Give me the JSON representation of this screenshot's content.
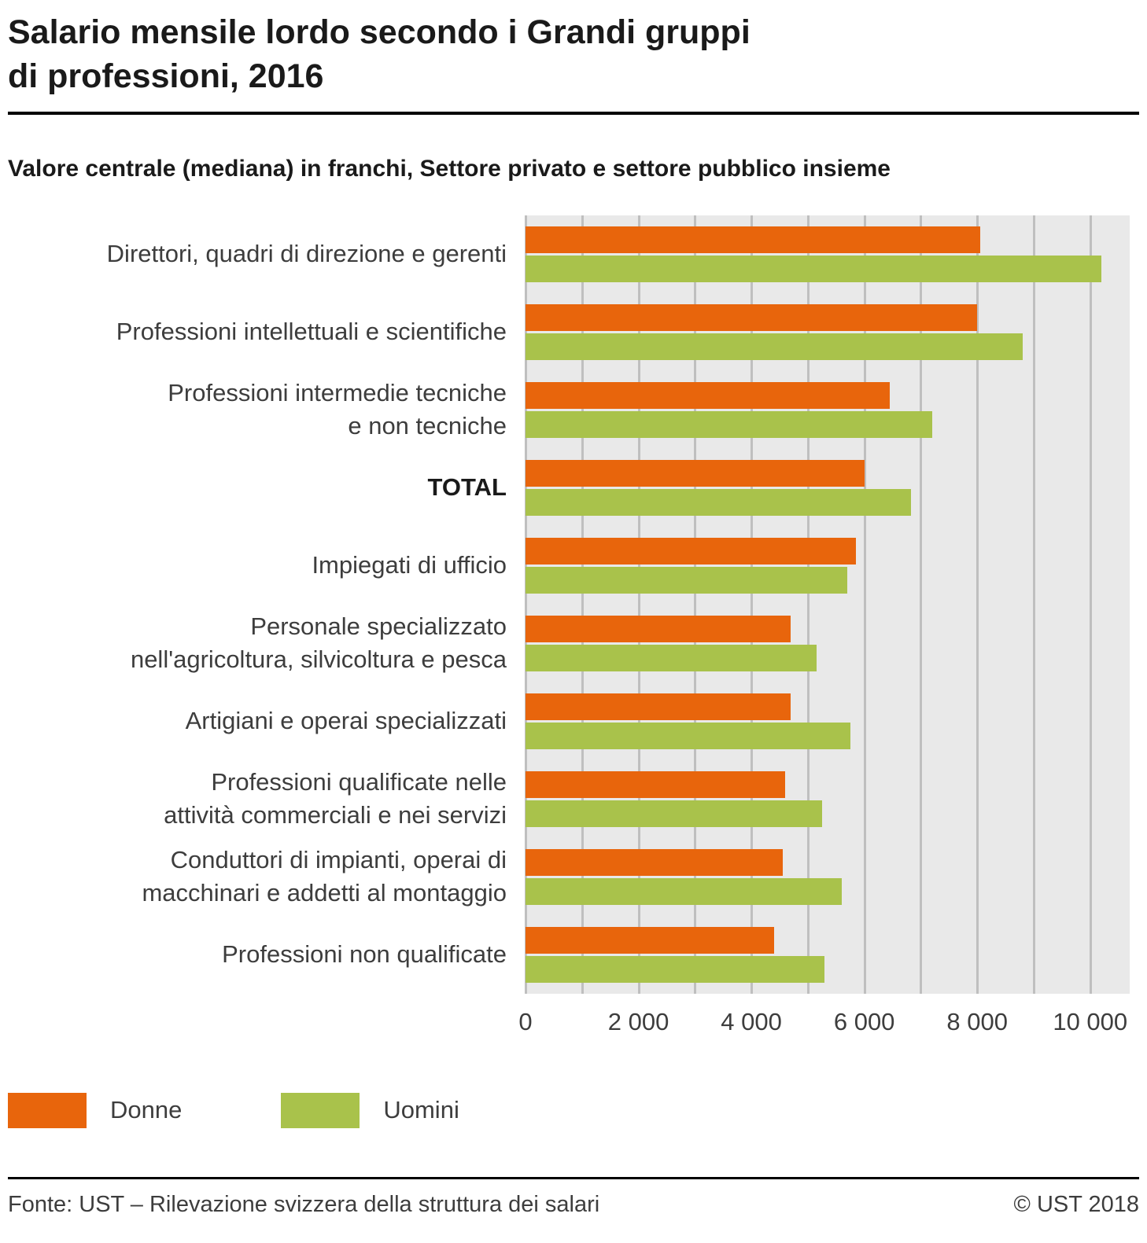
{
  "title": "Salario mensile lordo secondo i Grandi gruppi\ndi professioni, 2016",
  "subtitle": "Valore centrale (mediana) in franchi, Settore privato e settore pubblico insieme",
  "legend": {
    "donne_label": "Donne",
    "uomini_label": "Uomini"
  },
  "footer": {
    "source": "Fonte: UST – Rilevazione svizzera della struttura dei salari",
    "copyright": "© UST 2018"
  },
  "colors": {
    "donne": "#e8650c",
    "uomini": "#a9c24b",
    "plot_background": "#e9e9e9",
    "gridline": "#bfbfbf"
  },
  "chart_data": {
    "type": "bar",
    "orientation": "horizontal",
    "title": "Salario mensile lordo secondo i Grandi gruppi di professioni, 2016",
    "subtitle": "Valore centrale (mediana) in franchi, Settore privato e settore pubblico insieme",
    "unit": "franchi",
    "categories": [
      "Direttori, quadri di direzione e gerenti",
      "Professioni intellettuali e scientifiche",
      "Professioni intermedie tecniche\ne non tecniche",
      "TOTAL",
      "Impiegati di ufficio",
      "Personale specializzato\nnell'agricoltura, silvicoltura e pesca",
      "Artigiani e operai specializzati",
      "Professioni qualificate nelle\nattività commerciali e nei servizi",
      "Conduttori di impianti, operai di\nmacchinari e addetti al montaggio",
      "Professioni non qualificate"
    ],
    "total_index": 3,
    "series": [
      {
        "name": "Donne",
        "color": "#e8650c",
        "values": [
          8050,
          8000,
          6450,
          6000,
          5850,
          4700,
          4700,
          4600,
          4550,
          4400
        ]
      },
      {
        "name": "Uomini",
        "color": "#a9c24b",
        "values": [
          10200,
          8800,
          7200,
          6830,
          5700,
          5150,
          5750,
          5250,
          5600,
          5300
        ]
      }
    ],
    "xlim": [
      0,
      10700
    ],
    "gridline_step": 1000,
    "xticks": {
      "values": [
        0,
        2000,
        4000,
        6000,
        8000,
        10000
      ],
      "labels": [
        "0",
        "2 000",
        "4 000",
        "6 000",
        "8 000",
        "10 000"
      ]
    },
    "legend_position": "bottom-left",
    "grid": true
  }
}
